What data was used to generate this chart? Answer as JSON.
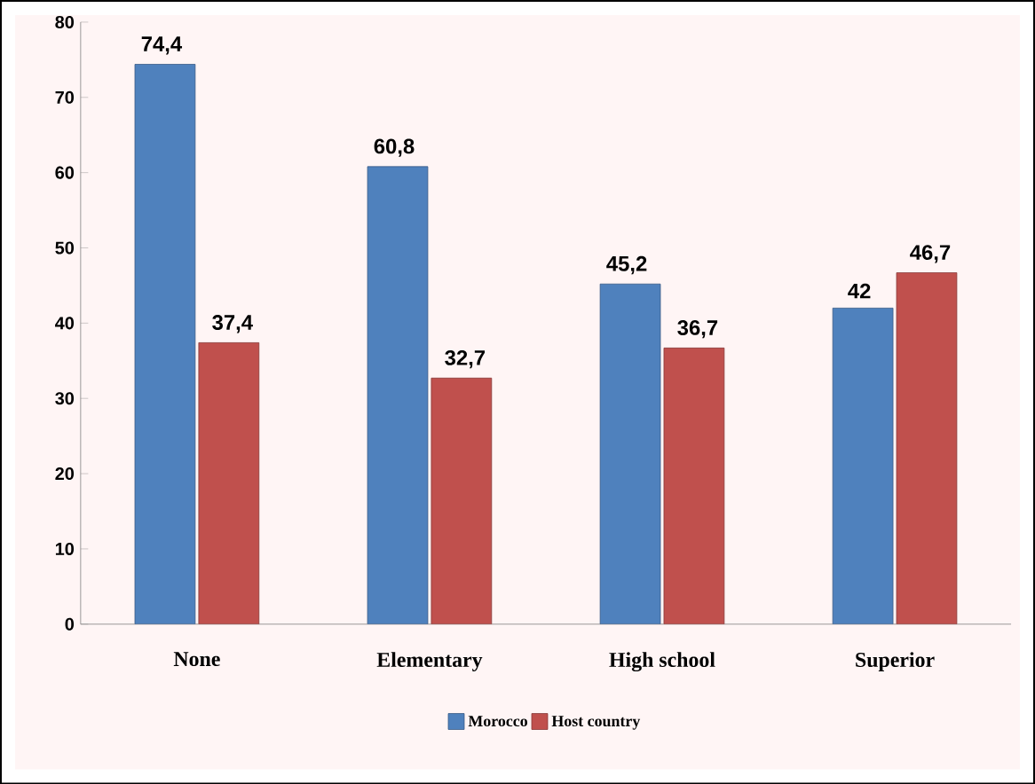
{
  "chart_data": {
    "type": "bar",
    "categories": [
      "None",
      "Elementary",
      "High school",
      "Superior"
    ],
    "series": [
      {
        "name": "Morocco",
        "color": "#4f81bd",
        "values": [
          74.4,
          60.8,
          45.2,
          42
        ],
        "value_labels": [
          "74,4",
          "60,8",
          "45,2",
          "42"
        ]
      },
      {
        "name": "Host country",
        "color": "#c0504d",
        "values": [
          37.4,
          32.7,
          36.7,
          46.7
        ],
        "value_labels": [
          "37,4",
          "32,7",
          "36,7",
          "46,7"
        ]
      }
    ],
    "ylim": [
      0,
      80
    ],
    "yticks": [
      0,
      10,
      20,
      30,
      40,
      50,
      60,
      70,
      80
    ],
    "legend": "bottom",
    "grid": false
  }
}
